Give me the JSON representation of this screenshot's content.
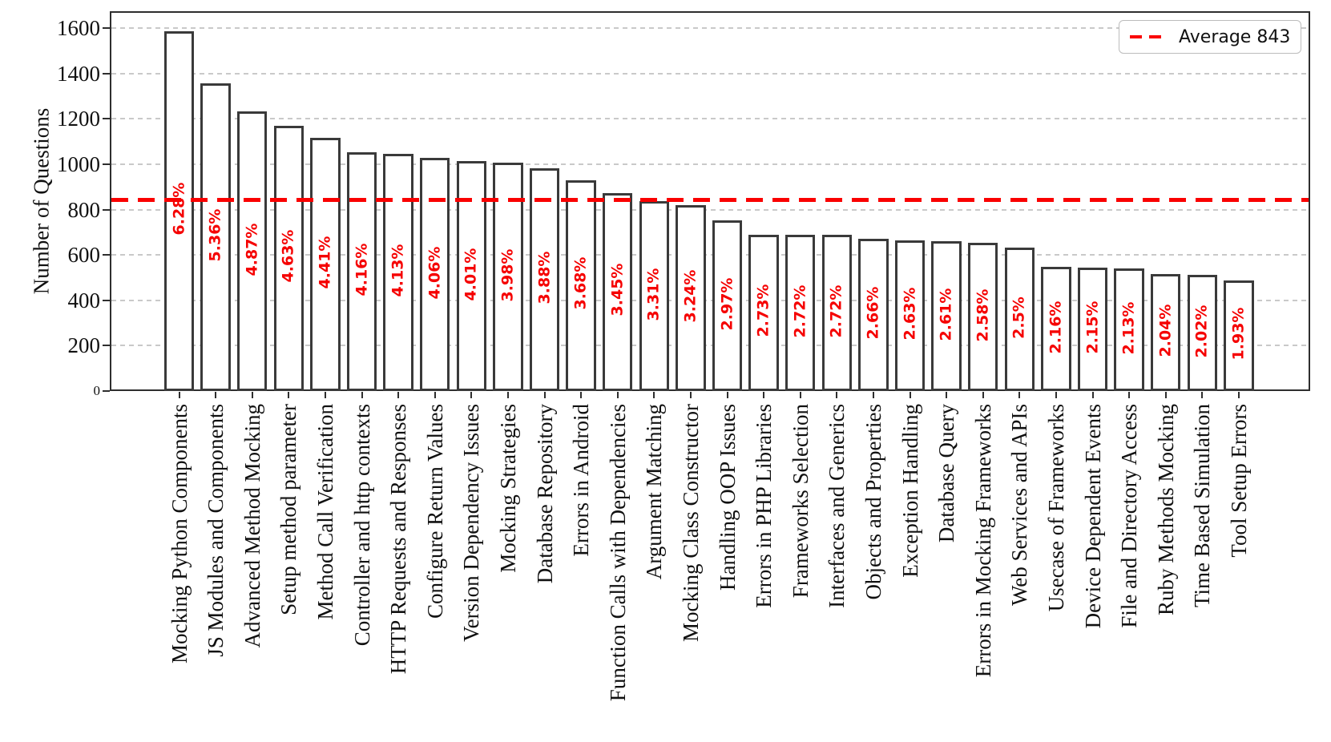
{
  "chart_data": {
    "type": "bar",
    "title": "",
    "xlabel": "",
    "ylabel": "Number of Questions",
    "ylim": [
      0,
      1675
    ],
    "yticks": [
      0,
      200,
      400,
      600,
      800,
      1000,
      1200,
      1400,
      1600
    ],
    "grid": "horizontal dashed gridlines on",
    "legend_position": "upper right",
    "categories": [
      "Mocking Python Components",
      "JS Modules and Components",
      "Advanced Method Mocking",
      "Setup method parameter",
      "Method Call Verification",
      "Controller and http contexts",
      "HTTP Requests and Responses",
      "Configure Return Values",
      "Version Dependency Issues",
      "Mocking Strategies",
      "Database Repository",
      "Errors in Android",
      "Function Calls with Dependencies",
      "Argument Matching",
      "Mocking Class Constructor",
      "Handling OOP Issues",
      "Errors in PHP Libraries",
      "Frameworks Selection",
      "Interfaces and Generics",
      "Objects and Properties",
      "Exception Handling",
      "Database Query",
      "Errors in Mocking Frameworks",
      "Web Services and APIs",
      "Usecase of Frameworks",
      "Device Dependent Events",
      "File and Directory Access",
      "Ruby Methods Mocking",
      "Time Based Simulation",
      "Tool Setup Errors"
    ],
    "values": [
      1588,
      1356,
      1232,
      1171,
      1115,
      1052,
      1045,
      1027,
      1014,
      1007,
      981,
      931,
      873,
      837,
      819,
      751,
      690,
      688,
      688,
      673,
      665,
      660,
      652,
      632,
      546,
      544,
      539,
      516,
      511,
      488
    ],
    "percent_labels": [
      "6.28%",
      "5.36%",
      "4.87%",
      "4.63%",
      "4.41%",
      "4.16%",
      "4.13%",
      "4.06%",
      "4.01%",
      "3.98%",
      "3.88%",
      "3.68%",
      "3.45%",
      "3.31%",
      "3.24%",
      "2.97%",
      "2.73%",
      "2.72%",
      "2.72%",
      "2.66%",
      "2.63%",
      "2.61%",
      "2.58%",
      "2.5%",
      "2.16%",
      "2.15%",
      "2.13%",
      "2.04%",
      "2.02%",
      "1.93%"
    ],
    "average_line": {
      "value": 843,
      "label": "Average 843",
      "style": "dashed"
    },
    "colors": {
      "bar_fill": "#ffffff",
      "bar_edge": "#3a3a3a",
      "average_line": "#fa0000",
      "percent_label": "#f50000",
      "gridline": "#c9c9c9",
      "axis_text": "#111111"
    }
  }
}
